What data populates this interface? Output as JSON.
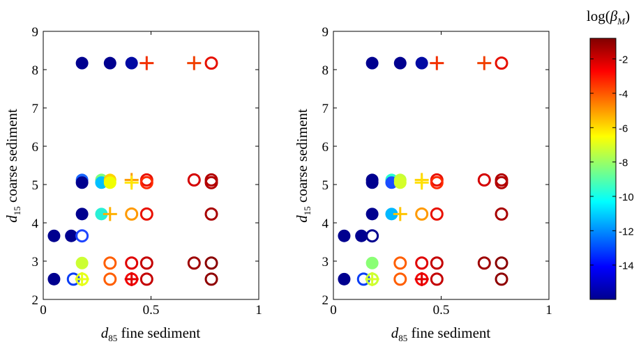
{
  "chart_data": [
    {
      "type": "scatter",
      "xlim": [
        0,
        1
      ],
      "ylim": [
        2,
        9
      ],
      "x_ticks": [
        "0",
        "0.5",
        "1"
      ],
      "y_ticks": [
        "2",
        "3",
        "4",
        "5",
        "6",
        "7",
        "8",
        "9"
      ],
      "xlabel": {
        "sym": "d",
        "sub": "85",
        "text": " fine sediment"
      },
      "ylabel": {
        "sym": "d",
        "sub": "15",
        "text": " coarse sediment"
      },
      "grid": false,
      "points": [
        {
          "x": 0.05,
          "y": 2.53,
          "marker": "filled",
          "color": "#00008f"
        },
        {
          "x": 0.14,
          "y": 2.53,
          "marker": "open",
          "color": "#0a3df5"
        },
        {
          "x": 0.18,
          "y": 2.53,
          "marker": "open",
          "color": "#e6ff19"
        },
        {
          "x": 0.18,
          "y": 2.53,
          "marker": "plus",
          "color": "#e6ff19"
        },
        {
          "x": 0.31,
          "y": 2.53,
          "marker": "open",
          "color": "#ff5e00"
        },
        {
          "x": 0.41,
          "y": 2.53,
          "marker": "open",
          "color": "#f20000"
        },
        {
          "x": 0.41,
          "y": 2.53,
          "marker": "plus",
          "color": "#e00000"
        },
        {
          "x": 0.48,
          "y": 2.53,
          "marker": "open",
          "color": "#c40000"
        },
        {
          "x": 0.78,
          "y": 2.53,
          "marker": "open",
          "color": "#8f0000"
        },
        {
          "x": 0.18,
          "y": 2.95,
          "marker": "filled",
          "color": "#ccff33"
        },
        {
          "x": 0.31,
          "y": 2.95,
          "marker": "open",
          "color": "#ff5e00"
        },
        {
          "x": 0.41,
          "y": 2.95,
          "marker": "open",
          "color": "#e00000"
        },
        {
          "x": 0.48,
          "y": 2.95,
          "marker": "open",
          "color": "#c40000"
        },
        {
          "x": 0.7,
          "y": 2.95,
          "marker": "open",
          "color": "#9e0000"
        },
        {
          "x": 0.78,
          "y": 2.95,
          "marker": "open",
          "color": "#8a0000"
        },
        {
          "x": 0.05,
          "y": 3.66,
          "marker": "filled",
          "color": "#00008f"
        },
        {
          "x": 0.13,
          "y": 3.66,
          "marker": "filled",
          "color": "#00008f"
        },
        {
          "x": 0.18,
          "y": 3.66,
          "marker": "open",
          "color": "#1f45ff"
        },
        {
          "x": 0.18,
          "y": 4.23,
          "marker": "filled",
          "color": "#00008f"
        },
        {
          "x": 0.27,
          "y": 4.23,
          "marker": "filled",
          "color": "#29f0d6"
        },
        {
          "x": 0.31,
          "y": 4.23,
          "marker": "plus",
          "color": "#ffb000"
        },
        {
          "x": 0.41,
          "y": 4.23,
          "marker": "open",
          "color": "#ff9a00"
        },
        {
          "x": 0.48,
          "y": 4.23,
          "marker": "open",
          "color": "#e81000"
        },
        {
          "x": 0.78,
          "y": 4.23,
          "marker": "open",
          "color": "#a80000"
        },
        {
          "x": 0.18,
          "y": 5.12,
          "marker": "filled",
          "color": "#1a66ff"
        },
        {
          "x": 0.18,
          "y": 5.05,
          "marker": "filled",
          "color": "#00008f"
        },
        {
          "x": 0.27,
          "y": 5.12,
          "marker": "filled",
          "color": "#7dff7d"
        },
        {
          "x": 0.27,
          "y": 5.05,
          "marker": "filled",
          "color": "#00c0ff"
        },
        {
          "x": 0.31,
          "y": 5.12,
          "marker": "filled",
          "color": "#ffd400"
        },
        {
          "x": 0.31,
          "y": 5.05,
          "marker": "filled",
          "color": "#f0ff00"
        },
        {
          "x": 0.41,
          "y": 5.12,
          "marker": "plus",
          "color": "#ff9a00"
        },
        {
          "x": 0.41,
          "y": 5.05,
          "marker": "plus",
          "color": "#ffe500"
        },
        {
          "x": 0.48,
          "y": 5.12,
          "marker": "open",
          "color": "#e81000"
        },
        {
          "x": 0.48,
          "y": 5.05,
          "marker": "open",
          "color": "#ff2a00"
        },
        {
          "x": 0.7,
          "y": 5.12,
          "marker": "open",
          "color": "#d40000"
        },
        {
          "x": 0.78,
          "y": 5.12,
          "marker": "open",
          "color": "#b30000"
        },
        {
          "x": 0.78,
          "y": 5.05,
          "marker": "open",
          "color": "#b30000"
        },
        {
          "x": 0.18,
          "y": 8.17,
          "marker": "filled",
          "color": "#00008f"
        },
        {
          "x": 0.31,
          "y": 8.17,
          "marker": "filled",
          "color": "#00008f"
        },
        {
          "x": 0.41,
          "y": 8.17,
          "marker": "filled",
          "color": "#000aa3"
        },
        {
          "x": 0.48,
          "y": 8.17,
          "marker": "plus",
          "color": "#f23000"
        },
        {
          "x": 0.7,
          "y": 8.17,
          "marker": "plus",
          "color": "#f04000"
        },
        {
          "x": 0.78,
          "y": 8.17,
          "marker": "open",
          "color": "#e61000"
        }
      ]
    },
    {
      "type": "scatter",
      "xlim": [
        0,
        1
      ],
      "ylim": [
        2,
        9
      ],
      "x_ticks": [
        "0",
        "0.5",
        "1"
      ],
      "y_ticks": [
        "2",
        "3",
        "4",
        "5",
        "6",
        "7",
        "8",
        "9"
      ],
      "xlabel": {
        "sym": "d",
        "sub": "85",
        "text": " fine sediment"
      },
      "ylabel": {
        "sym": "d",
        "sub": "15",
        "text": " coarse sediment"
      },
      "grid": false,
      "points": [
        {
          "x": 0.05,
          "y": 2.53,
          "marker": "filled",
          "color": "#00008f"
        },
        {
          "x": 0.14,
          "y": 2.53,
          "marker": "open",
          "color": "#0a3df5"
        },
        {
          "x": 0.18,
          "y": 2.53,
          "marker": "open",
          "color": "#c8ff33"
        },
        {
          "x": 0.18,
          "y": 2.53,
          "marker": "plus",
          "color": "#d6ff29"
        },
        {
          "x": 0.31,
          "y": 2.53,
          "marker": "open",
          "color": "#ff5e00"
        },
        {
          "x": 0.41,
          "y": 2.53,
          "marker": "open",
          "color": "#f20000"
        },
        {
          "x": 0.41,
          "y": 2.53,
          "marker": "plus",
          "color": "#e00000"
        },
        {
          "x": 0.48,
          "y": 2.53,
          "marker": "open",
          "color": "#c40000"
        },
        {
          "x": 0.78,
          "y": 2.53,
          "marker": "open",
          "color": "#8f0000"
        },
        {
          "x": 0.18,
          "y": 2.95,
          "marker": "filled",
          "color": "#8aff75"
        },
        {
          "x": 0.31,
          "y": 2.95,
          "marker": "open",
          "color": "#ff5e00"
        },
        {
          "x": 0.41,
          "y": 2.95,
          "marker": "open",
          "color": "#e00000"
        },
        {
          "x": 0.48,
          "y": 2.95,
          "marker": "open",
          "color": "#c40000"
        },
        {
          "x": 0.7,
          "y": 2.95,
          "marker": "open",
          "color": "#9e0000"
        },
        {
          "x": 0.78,
          "y": 2.95,
          "marker": "open",
          "color": "#8a0000"
        },
        {
          "x": 0.05,
          "y": 3.66,
          "marker": "filled",
          "color": "#00008f"
        },
        {
          "x": 0.13,
          "y": 3.66,
          "marker": "filled",
          "color": "#00008f"
        },
        {
          "x": 0.18,
          "y": 3.66,
          "marker": "open",
          "color": "#00008f"
        },
        {
          "x": 0.18,
          "y": 4.23,
          "marker": "filled",
          "color": "#00008f"
        },
        {
          "x": 0.27,
          "y": 4.23,
          "marker": "filled",
          "color": "#00b8ff"
        },
        {
          "x": 0.31,
          "y": 4.23,
          "marker": "plus",
          "color": "#ffc400"
        },
        {
          "x": 0.41,
          "y": 4.23,
          "marker": "open",
          "color": "#ff9a00"
        },
        {
          "x": 0.48,
          "y": 4.23,
          "marker": "open",
          "color": "#e81000"
        },
        {
          "x": 0.78,
          "y": 4.23,
          "marker": "open",
          "color": "#a80000"
        },
        {
          "x": 0.18,
          "y": 5.12,
          "marker": "filled",
          "color": "#00008f"
        },
        {
          "x": 0.18,
          "y": 5.05,
          "marker": "filled",
          "color": "#00008f"
        },
        {
          "x": 0.27,
          "y": 5.12,
          "marker": "filled",
          "color": "#29ffd0"
        },
        {
          "x": 0.27,
          "y": 5.05,
          "marker": "filled",
          "color": "#1a4dff"
        },
        {
          "x": 0.31,
          "y": 5.12,
          "marker": "filled",
          "color": "#c6ff38"
        },
        {
          "x": 0.31,
          "y": 5.05,
          "marker": "filled",
          "color": "#d4ff2a"
        },
        {
          "x": 0.41,
          "y": 5.12,
          "marker": "plus",
          "color": "#ffd400"
        },
        {
          "x": 0.41,
          "y": 5.05,
          "marker": "plus",
          "color": "#ffe000"
        },
        {
          "x": 0.48,
          "y": 5.12,
          "marker": "open",
          "color": "#e81000"
        },
        {
          "x": 0.48,
          "y": 5.05,
          "marker": "open",
          "color": "#ff2a00"
        },
        {
          "x": 0.7,
          "y": 5.12,
          "marker": "open",
          "color": "#d40000"
        },
        {
          "x": 0.78,
          "y": 5.12,
          "marker": "open",
          "color": "#b30000"
        },
        {
          "x": 0.78,
          "y": 5.05,
          "marker": "open",
          "color": "#b30000"
        },
        {
          "x": 0.18,
          "y": 8.17,
          "marker": "filled",
          "color": "#00008f"
        },
        {
          "x": 0.31,
          "y": 8.17,
          "marker": "filled",
          "color": "#00008f"
        },
        {
          "x": 0.41,
          "y": 8.17,
          "marker": "filled",
          "color": "#000aa3"
        },
        {
          "x": 0.48,
          "y": 8.17,
          "marker": "plus",
          "color": "#f23000"
        },
        {
          "x": 0.7,
          "y": 8.17,
          "marker": "plus",
          "color": "#f04000"
        },
        {
          "x": 0.78,
          "y": 8.17,
          "marker": "open",
          "color": "#e61000"
        }
      ]
    }
  ],
  "colorbar": {
    "label": "log(β_M)",
    "label_sym": "β",
    "label_sub": "M",
    "range": [
      -16,
      -0.8
    ],
    "ticks": [
      -2,
      -4,
      -6,
      -8,
      -10,
      -12,
      -14
    ],
    "tick_labels": [
      "-2",
      "-4",
      "-6",
      "-8",
      "-10",
      "-12",
      "-14"
    ],
    "colormap": "jet"
  }
}
